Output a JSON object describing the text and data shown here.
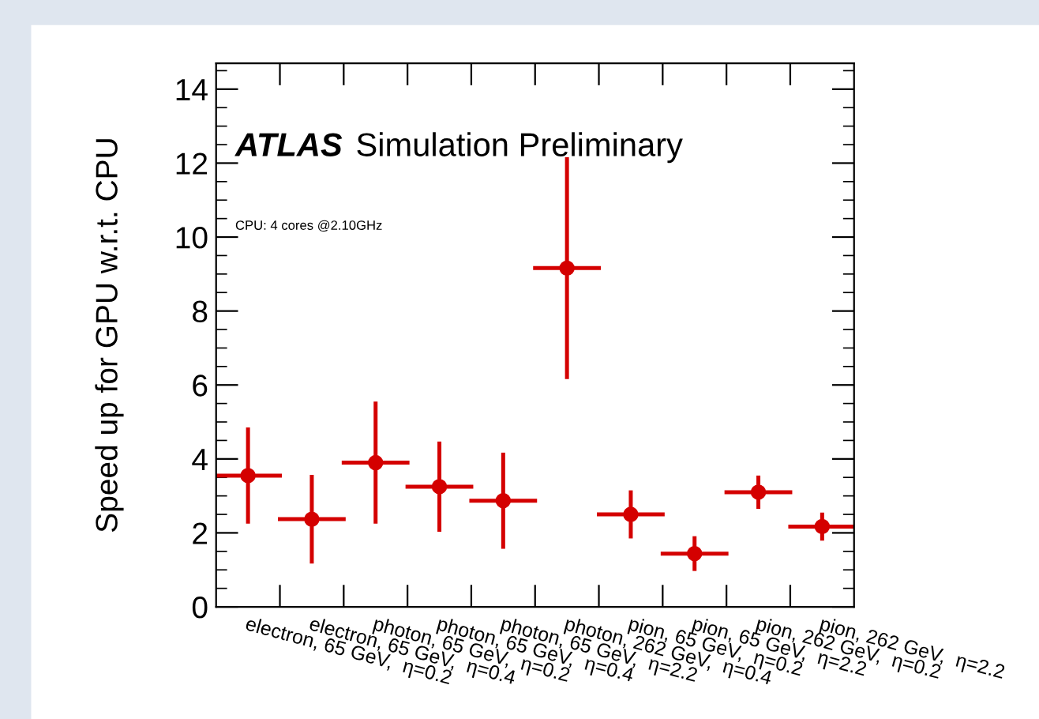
{
  "chart_data": {
    "type": "scatter",
    "ylabel": "Speed up for GPU w.r.t. CPU",
    "annotations": [
      "ATLAS",
      "Simulation Preliminary",
      "CPU: 4 cores @2.10GHz"
    ],
    "categories": [
      "electron, 65 GeV,  η=0.2",
      "electron, 65 GeV,  η=0.4",
      "photon, 65 GeV,  η=0.2",
      "photon, 65 GeV,  η=0.4",
      "photon, 65 GeV,  η=2.2",
      "photon, 262 GeV,  η=0.4",
      "pion, 65 GeV,  η=0.2",
      "pion, 65 GeV,  η=2.2",
      "pion, 262 GeV,  η=0.2",
      "pion, 262 GeV,  η=2.2"
    ],
    "series": [
      {
        "color": "#d40000",
        "values": [
          3.55,
          2.37,
          3.9,
          3.25,
          2.87,
          9.16,
          2.5,
          1.44,
          3.1,
          2.17
        ],
        "errors": [
          1.3,
          1.2,
          1.65,
          1.22,
          1.3,
          3.0,
          0.65,
          0.47,
          0.45,
          0.38
        ]
      }
    ],
    "ylim": [
      0,
      14.7
    ],
    "yticks": [
      0,
      2,
      4,
      6,
      8,
      10,
      12,
      14
    ],
    "marker": "circle",
    "grid": false,
    "legend": false
  }
}
